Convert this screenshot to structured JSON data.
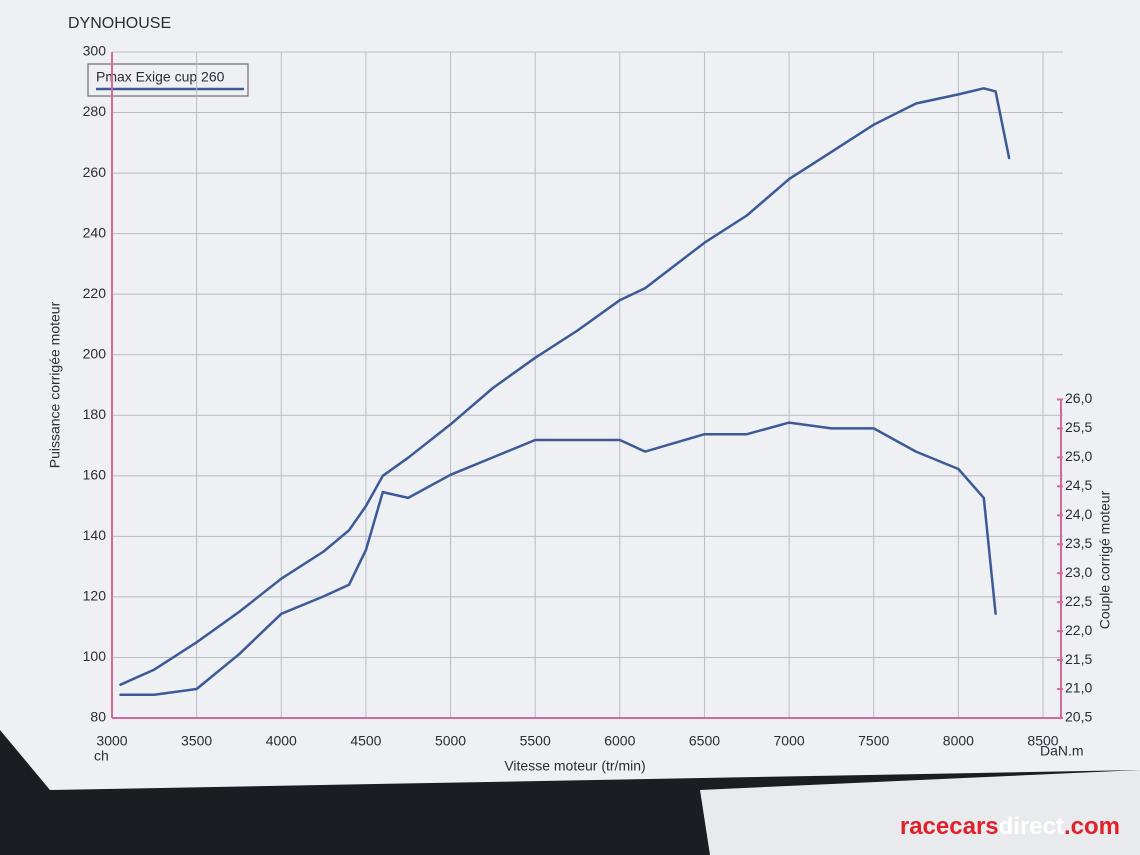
{
  "chart_data": {
    "type": "line",
    "title": "DYNOHOUSE",
    "x_label": "Vitesse moteur (tr/min)",
    "y_label": "Puissance corrigée moteur",
    "y2_label": "Couple corrigé moteur",
    "y_unit": "ch",
    "y2_unit": "DaN.m",
    "watermark": [
      "racecars",
      "direct",
      ".com"
    ],
    "x": [
      3050,
      3250,
      3500,
      3750,
      4000,
      4250,
      4400,
      4500,
      4600,
      4750,
      5000,
      5250,
      5500,
      5750,
      6000,
      6150,
      6500,
      6750,
      7000,
      7250,
      7500,
      7750,
      8000,
      8150,
      8220,
      8300
    ],
    "series": [
      {
        "name": "Pmax Exige cup 260",
        "color": "#3d5a96",
        "values": [
          91,
          96,
          105,
          115,
          126,
          135,
          142,
          150,
          160,
          166,
          177,
          189,
          199,
          208,
          218,
          222,
          237,
          246,
          258,
          267,
          276,
          283,
          286,
          288,
          287,
          265
        ]
      },
      {
        "color": "#3d5a96",
        "axis": "y2",
        "values": [
          20.9,
          20.9,
          21.0,
          21.6,
          22.3,
          22.6,
          22.8,
          23.4,
          24.4,
          24.3,
          24.7,
          25.0,
          25.3,
          25.3,
          25.3,
          25.1,
          25.4,
          25.4,
          25.6,
          25.5,
          25.5,
          25.1,
          24.8,
          24.3,
          22.3,
          null
        ]
      }
    ],
    "xlim": [
      3000,
      8500
    ],
    "xticks": [
      3000,
      3500,
      4000,
      4500,
      5000,
      5500,
      6000,
      6500,
      7000,
      7500,
      8000,
      8500
    ],
    "ylim": [
      80,
      300
    ],
    "yticks": [
      80,
      100,
      120,
      140,
      160,
      180,
      200,
      220,
      240,
      260,
      280,
      300
    ],
    "y2lim": [
      20.5,
      32.0
    ],
    "y2ticks": [
      {
        "value": 20.5,
        "label": "20,5"
      },
      {
        "value": 21.0,
        "label": "21,0"
      },
      {
        "value": 21.5,
        "label": "21,5"
      },
      {
        "value": 22.0,
        "label": "22,0"
      },
      {
        "value": 22.5,
        "label": "22,5"
      },
      {
        "value": 23.0,
        "label": "23,0"
      },
      {
        "value": 23.5,
        "label": "23,5"
      },
      {
        "value": 24.0,
        "label": "24,0"
      },
      {
        "value": 24.5,
        "label": "24,5"
      },
      {
        "value": 25.0,
        "label": "25,0"
      },
      {
        "value": 25.5,
        "label": "25,5"
      },
      {
        "value": 26.0,
        "label": "26,0"
      }
    ],
    "grid": true,
    "legend": "top-left"
  }
}
